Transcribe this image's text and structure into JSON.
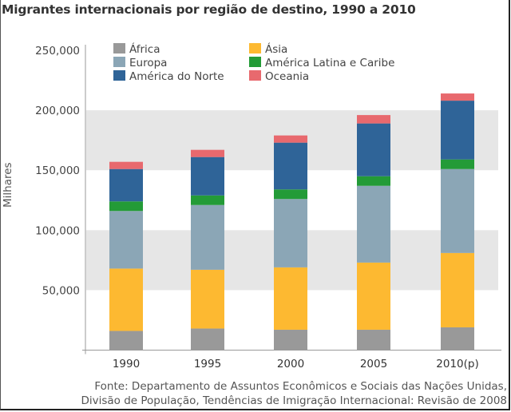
{
  "chart_data": {
    "type": "bar",
    "stacked": true,
    "title": "Migrantes internacionais por região de destino, 1990 a 2010",
    "xlabel": "",
    "ylabel": "Milhares",
    "ylim": [
      0,
      250000
    ],
    "yticks": [
      50000,
      100000,
      150000,
      200000,
      250000
    ],
    "ytick_labels": [
      "50,000",
      "100,000",
      "150,000",
      "200,000",
      "250,000"
    ],
    "grid_bands": [
      [
        50000,
        100000
      ],
      [
        150000,
        200000
      ]
    ],
    "categories": [
      "1990",
      "1995",
      "2000",
      "2005",
      "2010(p)"
    ],
    "legend_position": "top-left",
    "series": [
      {
        "name": "África",
        "color": "#999999",
        "values": [
          16000,
          18000,
          17000,
          17000,
          19000
        ]
      },
      {
        "name": "Ásia",
        "color": "#FDB931",
        "values": [
          52000,
          49000,
          52000,
          56000,
          62000
        ]
      },
      {
        "name": "Europa",
        "color": "#8BA6B6",
        "values": [
          48000,
          54000,
          57000,
          64000,
          70000
        ]
      },
      {
        "name": "América Latina e Caribe",
        "color": "#239B37",
        "values": [
          8000,
          8000,
          8000,
          8000,
          8000
        ]
      },
      {
        "name": "América do Norte",
        "color": "#2F6498",
        "values": [
          27000,
          32000,
          39000,
          44000,
          49000
        ]
      },
      {
        "name": "Oceania",
        "color": "#E8696E",
        "values": [
          6000,
          6000,
          6000,
          7000,
          6000
        ]
      }
    ]
  },
  "legend": {
    "items": [
      {
        "label": "África",
        "color": "#999999"
      },
      {
        "label": "Ásia",
        "color": "#FDB931"
      },
      {
        "label": "Europa",
        "color": "#8BA6B6"
      },
      {
        "label": "América Latina e Caribe",
        "color": "#239B37"
      },
      {
        "label": "América do Norte",
        "color": "#2F6498"
      },
      {
        "label": "Oceania",
        "color": "#E8696E"
      }
    ]
  },
  "source": {
    "line1": "Fonte: Departamento de Assuntos Econômicos e Sociais das Nações Unidas,",
    "line2": "Divisão de População, Tendências de Imigração Internacional: Revisão de 2008"
  }
}
